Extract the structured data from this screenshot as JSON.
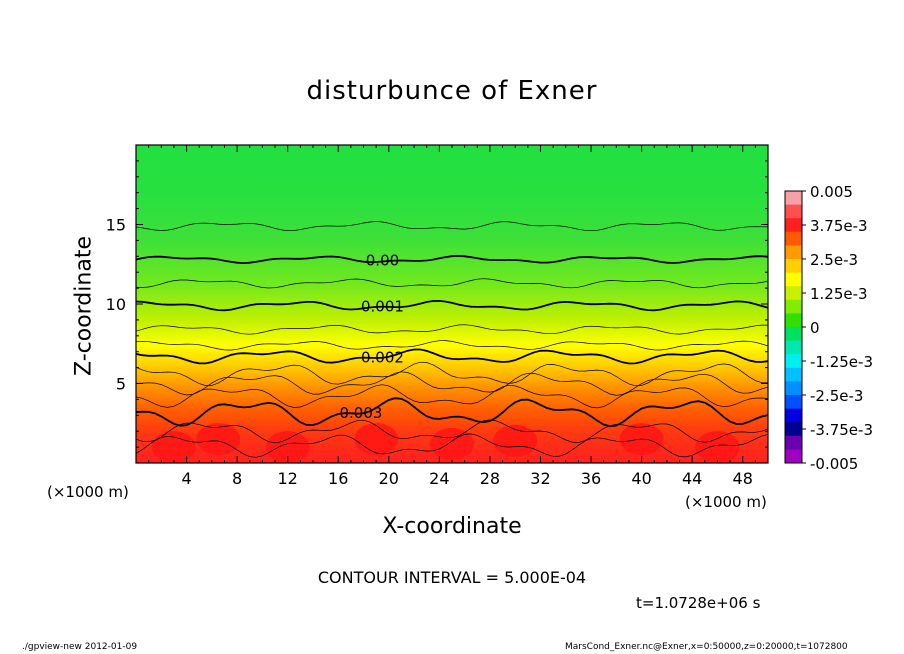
{
  "chart_data": {
    "type": "heatmap",
    "title": "disturbunce of Exner",
    "xlabel": "X-coordinate",
    "ylabel": "Z-coordinate",
    "x_unit": "(×1000 m)",
    "y_unit": "(×1000 m)",
    "xlim": [
      0,
      50
    ],
    "ylim": [
      0,
      20
    ],
    "x_ticks": [
      "4",
      "8",
      "12",
      "16",
      "20",
      "24",
      "28",
      "32",
      "36",
      "40",
      "44",
      "48"
    ],
    "y_ticks": [
      "5",
      "10",
      "15"
    ],
    "colorbar": {
      "range": [
        -0.005,
        0.005
      ],
      "labels": [
        "0.005",
        "3.75e-3",
        "2.5e-3",
        "1.25e-3",
        "0",
        "-1.25e-3",
        "-2.5e-3",
        "-3.75e-3",
        "-0.005"
      ],
      "colors": [
        "#f7a0a8",
        "#ff5050",
        "#ff2020",
        "#ff5a00",
        "#ff9a00",
        "#ffd000",
        "#ffff00",
        "#c8f000",
        "#80ec00",
        "#30e000",
        "#00e060",
        "#00e8b0",
        "#00f0f0",
        "#00c0ff",
        "#0090ff",
        "#0050ff",
        "#0000e0",
        "#000090",
        "#6a00b0",
        "#a000c0"
      ]
    },
    "contour_labels": [
      "0.00",
      "0.001",
      "0.002",
      "0.003"
    ],
    "contour_lines": [
      {
        "label": "0.00",
        "level": 0.0,
        "z": 12.8,
        "amp": 0.15
      },
      {
        "label": "0.001",
        "level": 0.001,
        "z": 9.9,
        "amp": 0.2
      },
      {
        "label": "0.002",
        "level": 0.002,
        "z": 6.7,
        "amp": 0.3
      },
      {
        "label": "0.003",
        "level": 0.003,
        "z": 3.2,
        "amp": 0.6
      }
    ]
  },
  "annotation": {
    "contour_interval": "CONTOUR INTERVAL = 5.000E-04",
    "time": "t=1.0728e+06 s"
  },
  "footer": {
    "left": "./gpview-new  2012-01-09",
    "right": "MarsCond_Exner.nc@Exner,x=0:50000,z=0:20000,t=1072800"
  }
}
